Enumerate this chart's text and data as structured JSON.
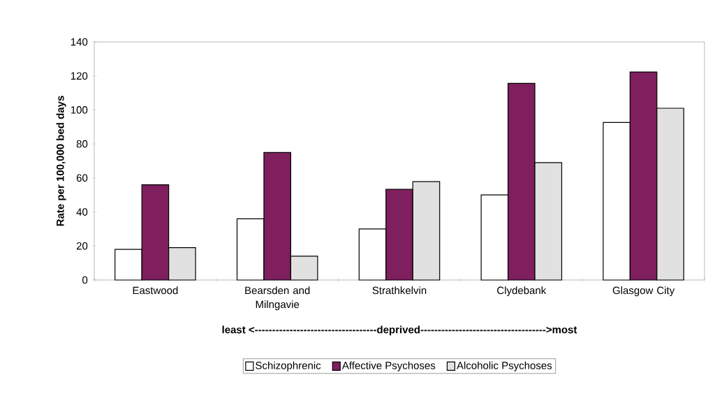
{
  "chart_data": {
    "type": "bar",
    "xlabel": "**least <-----------------------------------deprived------------------------------------>most**",
    "ylabel": "Rate per 100,000 bed days",
    "categories": [
      "Eastwood",
      "Bearsden and Milngavie",
      "Strathkelvin",
      "Clydebank",
      "Glasgow City"
    ],
    "series": [
      {
        "name": "Schizophrenic",
        "color": "#ffffff",
        "values": [
          18,
          36,
          30,
          50,
          92.6
        ]
      },
      {
        "name": "Affective Psychoses",
        "color": "#7f1f5e",
        "values": [
          56,
          75,
          53.3,
          115.6,
          122.3
        ]
      },
      {
        "name": "Alcoholic Psychoses",
        "color": "#e1e1e1",
        "values": [
          19,
          14,
          57.8,
          69,
          101
        ]
      }
    ],
    "ylim": [
      0,
      140
    ],
    "yticks": [
      0,
      20,
      40,
      60,
      80,
      100,
      120,
      140
    ],
    "grid": false,
    "legend": "bottom"
  }
}
